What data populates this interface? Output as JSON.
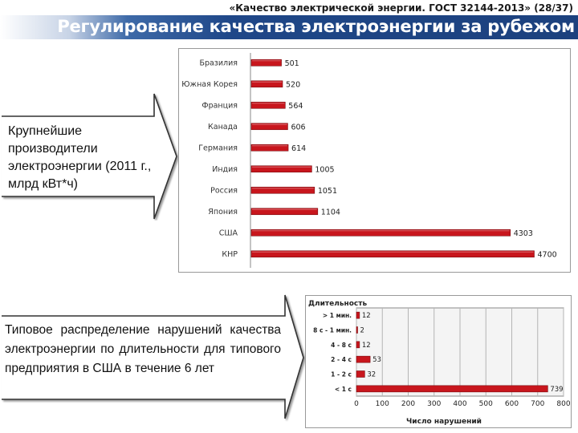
{
  "header": {
    "subtitle": "«Качество электрической энергии. ГОСТ 32144-2013» (28/37)",
    "title": "Регулирование качества электроэнергии за рубежом"
  },
  "callout1": {
    "text": "Крупнейшие производители электроэнергии (2011 г., млрд кВт*ч)"
  },
  "callout2": {
    "text": "Типовое распределение нарушений качества электроэнергии по длительности для типового предприятия в США в течение 6 лет"
  },
  "colors": {
    "bar": "#c8161d",
    "title_bar": "#1f4788"
  },
  "chart_data": [
    {
      "type": "bar",
      "orientation": "horizontal",
      "categories": [
        "Бразилия",
        "Южная Корея",
        "Франция",
        "Канада",
        "Германия",
        "Индия",
        "Россия",
        "Япония",
        "США",
        "КНР"
      ],
      "values": [
        501,
        520,
        564,
        606,
        614,
        1005,
        1051,
        1104,
        4303,
        4700
      ],
      "value_labels": [
        "501",
        "520",
        "564",
        "606",
        "614",
        "1005",
        "1051",
        "1104",
        "4303",
        "4700"
      ],
      "grid": false,
      "xlim": [
        0,
        4800
      ]
    },
    {
      "type": "bar",
      "orientation": "horizontal",
      "categories": [
        "> 1 мин.",
        "8 с - 1 мин.",
        "4 - 8 с",
        "2 - 4 с",
        "1 - 2 с",
        "< 1 с"
      ],
      "values": [
        12,
        2,
        12,
        53,
        32,
        739
      ],
      "value_labels": [
        "12",
        "2",
        "12",
        "53",
        "32",
        "739"
      ],
      "ylabel": "Длительность",
      "xlabel": "Число нарушений",
      "xlim": [
        0,
        800
      ],
      "xticks": [
        "0",
        "100",
        "200",
        "300",
        "400",
        "500",
        "600",
        "700",
        "800"
      ],
      "grid": true
    }
  ]
}
